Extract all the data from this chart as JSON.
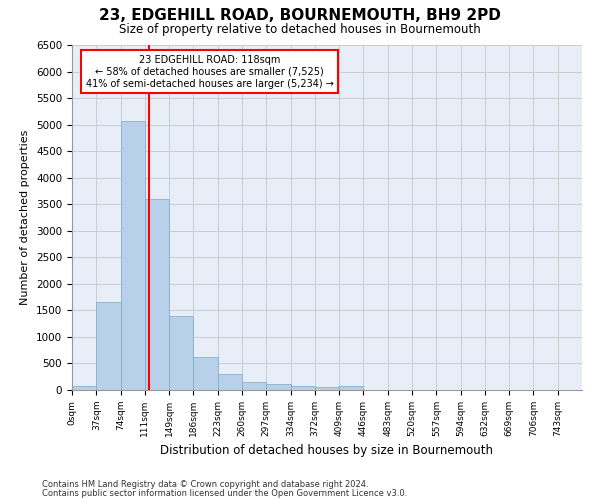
{
  "title": "23, EDGEHILL ROAD, BOURNEMOUTH, BH9 2PD",
  "subtitle": "Size of property relative to detached houses in Bournemouth",
  "xlabel": "Distribution of detached houses by size in Bournemouth",
  "ylabel": "Number of detached properties",
  "footnote1": "Contains HM Land Registry data © Crown copyright and database right 2024.",
  "footnote2": "Contains public sector information licensed under the Open Government Licence v3.0.",
  "bar_labels": [
    "0sqm",
    "37sqm",
    "74sqm",
    "111sqm",
    "149sqm",
    "186sqm",
    "223sqm",
    "260sqm",
    "297sqm",
    "334sqm",
    "372sqm",
    "409sqm",
    "446sqm",
    "483sqm",
    "520sqm",
    "557sqm",
    "594sqm",
    "632sqm",
    "669sqm",
    "706sqm",
    "743sqm"
  ],
  "bar_values": [
    75,
    1650,
    5075,
    3600,
    1400,
    620,
    300,
    145,
    105,
    70,
    55,
    70,
    0,
    0,
    0,
    0,
    0,
    0,
    0,
    0,
    0
  ],
  "bar_color": "#b8d0ea",
  "bar_edge_color": "#7aaac8",
  "annotation_title": "23 EDGEHILL ROAD: 118sqm",
  "annotation_line1": "← 58% of detached houses are smaller (7,525)",
  "annotation_line2": "41% of semi-detached houses are larger (5,234) →",
  "vline_color": "red",
  "annotation_box_edgecolor": "red",
  "ylim": [
    0,
    6500
  ],
  "yticks": [
    0,
    500,
    1000,
    1500,
    2000,
    2500,
    3000,
    3500,
    4000,
    4500,
    5000,
    5500,
    6000,
    6500
  ],
  "grid_color": "#cccccc",
  "background_color": "#e8eef8"
}
